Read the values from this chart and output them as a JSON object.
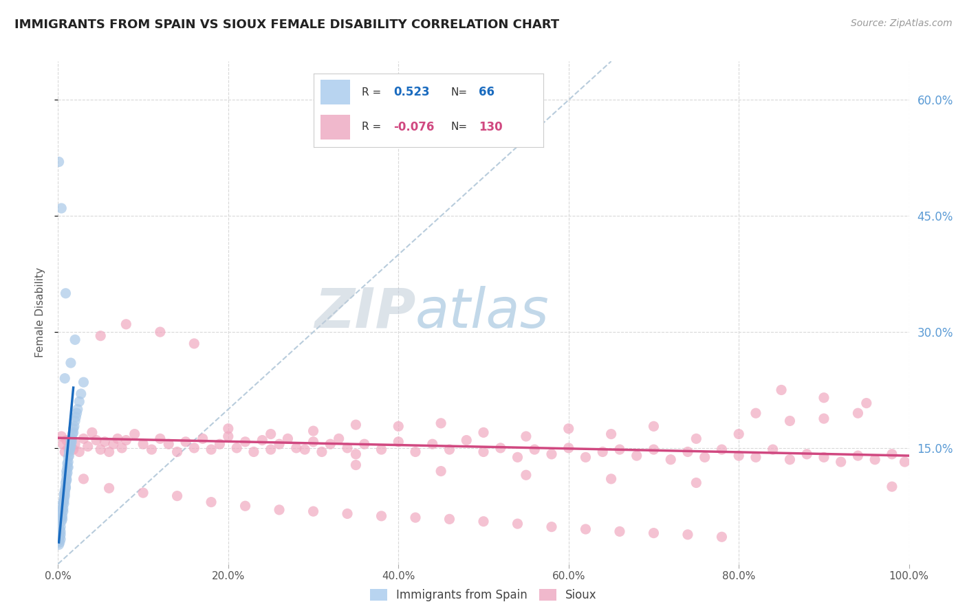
{
  "title": "IMMIGRANTS FROM SPAIN VS SIOUX FEMALE DISABILITY CORRELATION CHART",
  "source": "Source: ZipAtlas.com",
  "ylabel": "Female Disability",
  "xlim": [
    0.0,
    1.0
  ],
  "ylim": [
    0.0,
    0.65
  ],
  "xtick_labels": [
    "0.0%",
    "20.0%",
    "40.0%",
    "60.0%",
    "80.0%",
    "100.0%"
  ],
  "xtick_values": [
    0.0,
    0.2,
    0.4,
    0.6,
    0.8,
    1.0
  ],
  "ytick_labels_right": [
    "15.0%",
    "30.0%",
    "45.0%",
    "60.0%"
  ],
  "ytick_values_right": [
    0.15,
    0.3,
    0.45,
    0.6
  ],
  "blue_R": 0.523,
  "blue_N": 66,
  "pink_R": -0.076,
  "pink_N": 130,
  "background_color": "#ffffff",
  "grid_color": "#d8d8d8",
  "blue_color": "#a8c8e8",
  "pink_color": "#f0a8c0",
  "blue_line_color": "#1a6bbf",
  "pink_line_color": "#d04880",
  "diagonal_color": "#b8ccdc",
  "title_color": "#222222",
  "source_color": "#999999",
  "blue_scatter_x": [
    0.0005,
    0.001,
    0.0015,
    0.002,
    0.002,
    0.002,
    0.003,
    0.003,
    0.003,
    0.003,
    0.004,
    0.004,
    0.004,
    0.005,
    0.005,
    0.005,
    0.005,
    0.006,
    0.006,
    0.006,
    0.007,
    0.007,
    0.007,
    0.007,
    0.008,
    0.008,
    0.008,
    0.009,
    0.009,
    0.009,
    0.01,
    0.01,
    0.01,
    0.01,
    0.011,
    0.011,
    0.011,
    0.012,
    0.012,
    0.012,
    0.013,
    0.013,
    0.014,
    0.014,
    0.015,
    0.015,
    0.015,
    0.016,
    0.016,
    0.017,
    0.018,
    0.018,
    0.019,
    0.02,
    0.021,
    0.022,
    0.023,
    0.025,
    0.027,
    0.03,
    0.001,
    0.004,
    0.009,
    0.02,
    0.015,
    0.008
  ],
  "blue_scatter_y": [
    0.03,
    0.025,
    0.04,
    0.035,
    0.045,
    0.028,
    0.032,
    0.038,
    0.042,
    0.048,
    0.055,
    0.06,
    0.065,
    0.058,
    0.062,
    0.07,
    0.075,
    0.068,
    0.072,
    0.08,
    0.085,
    0.078,
    0.082,
    0.09,
    0.095,
    0.088,
    0.092,
    0.1,
    0.105,
    0.098,
    0.11,
    0.115,
    0.108,
    0.12,
    0.125,
    0.118,
    0.13,
    0.132,
    0.138,
    0.125,
    0.14,
    0.145,
    0.15,
    0.148,
    0.155,
    0.16,
    0.152,
    0.162,
    0.158,
    0.168,
    0.175,
    0.17,
    0.178,
    0.185,
    0.19,
    0.195,
    0.2,
    0.21,
    0.22,
    0.235,
    0.52,
    0.46,
    0.35,
    0.29,
    0.26,
    0.24
  ],
  "pink_scatter_x": [
    0.004,
    0.006,
    0.008,
    0.01,
    0.012,
    0.015,
    0.018,
    0.02,
    0.025,
    0.03,
    0.035,
    0.04,
    0.045,
    0.05,
    0.055,
    0.06,
    0.065,
    0.07,
    0.075,
    0.08,
    0.09,
    0.1,
    0.11,
    0.12,
    0.13,
    0.14,
    0.15,
    0.16,
    0.17,
    0.18,
    0.19,
    0.2,
    0.21,
    0.22,
    0.23,
    0.24,
    0.25,
    0.26,
    0.27,
    0.28,
    0.29,
    0.3,
    0.31,
    0.32,
    0.33,
    0.34,
    0.35,
    0.36,
    0.38,
    0.4,
    0.42,
    0.44,
    0.46,
    0.48,
    0.5,
    0.52,
    0.54,
    0.56,
    0.58,
    0.6,
    0.62,
    0.64,
    0.66,
    0.68,
    0.7,
    0.72,
    0.74,
    0.76,
    0.78,
    0.8,
    0.82,
    0.84,
    0.86,
    0.88,
    0.9,
    0.92,
    0.94,
    0.96,
    0.98,
    0.995,
    0.05,
    0.08,
    0.12,
    0.16,
    0.2,
    0.25,
    0.3,
    0.35,
    0.4,
    0.45,
    0.5,
    0.55,
    0.6,
    0.65,
    0.7,
    0.75,
    0.8,
    0.85,
    0.9,
    0.95,
    0.03,
    0.06,
    0.1,
    0.14,
    0.18,
    0.22,
    0.26,
    0.3,
    0.34,
    0.38,
    0.42,
    0.46,
    0.5,
    0.54,
    0.58,
    0.62,
    0.66,
    0.7,
    0.74,
    0.78,
    0.82,
    0.86,
    0.9,
    0.94,
    0.98,
    0.35,
    0.45,
    0.55,
    0.65,
    0.75
  ],
  "pink_scatter_y": [
    0.165,
    0.155,
    0.145,
    0.16,
    0.15,
    0.158,
    0.148,
    0.155,
    0.145,
    0.162,
    0.152,
    0.17,
    0.16,
    0.148,
    0.158,
    0.145,
    0.155,
    0.162,
    0.15,
    0.16,
    0.168,
    0.155,
    0.148,
    0.162,
    0.155,
    0.145,
    0.158,
    0.15,
    0.162,
    0.148,
    0.155,
    0.165,
    0.15,
    0.158,
    0.145,
    0.16,
    0.148,
    0.155,
    0.162,
    0.15,
    0.148,
    0.158,
    0.145,
    0.155,
    0.162,
    0.15,
    0.142,
    0.155,
    0.148,
    0.158,
    0.145,
    0.155,
    0.148,
    0.16,
    0.145,
    0.15,
    0.138,
    0.148,
    0.142,
    0.15,
    0.138,
    0.145,
    0.148,
    0.14,
    0.148,
    0.135,
    0.145,
    0.138,
    0.148,
    0.14,
    0.138,
    0.148,
    0.135,
    0.142,
    0.138,
    0.132,
    0.14,
    0.135,
    0.142,
    0.132,
    0.295,
    0.31,
    0.3,
    0.285,
    0.175,
    0.168,
    0.172,
    0.18,
    0.178,
    0.182,
    0.17,
    0.165,
    0.175,
    0.168,
    0.178,
    0.162,
    0.168,
    0.225,
    0.215,
    0.208,
    0.11,
    0.098,
    0.092,
    0.088,
    0.08,
    0.075,
    0.07,
    0.068,
    0.065,
    0.062,
    0.06,
    0.058,
    0.055,
    0.052,
    0.048,
    0.045,
    0.042,
    0.04,
    0.038,
    0.035,
    0.195,
    0.185,
    0.188,
    0.195,
    0.1,
    0.128,
    0.12,
    0.115,
    0.11,
    0.105
  ],
  "blue_line_x": [
    0.001,
    0.018
  ],
  "blue_line_y": [
    0.028,
    0.228
  ],
  "pink_line_x": [
    0.0,
    1.0
  ],
  "pink_line_y": [
    0.163,
    0.14
  ]
}
